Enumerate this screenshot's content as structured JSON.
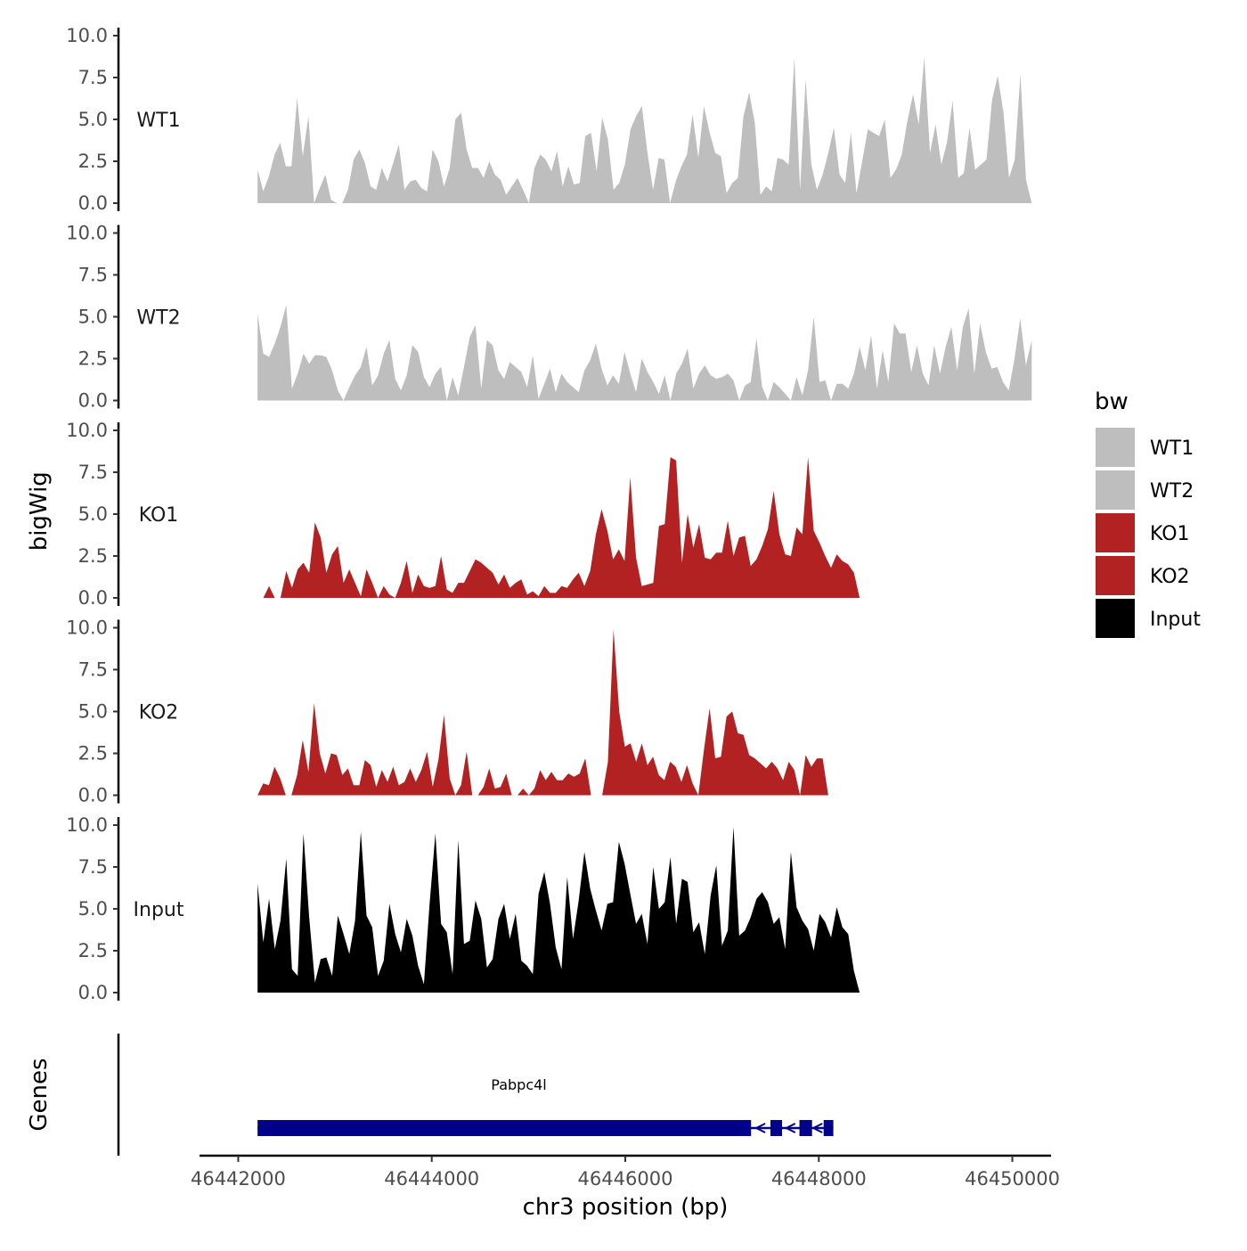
{
  "chart_data": {
    "type": "area",
    "ylabel": "bigWig",
    "xlabel": "chr3 position (bp)",
    "genes_panel_label": "Genes",
    "xlim": [
      46442000,
      46450000
    ],
    "x_ticks": [
      46442000,
      46444000,
      46446000,
      46448000,
      46450000
    ],
    "x_tick_labels": [
      "46442000",
      "46444000",
      "46446000",
      "46448000",
      "46450000"
    ],
    "ylim": [
      0,
      10
    ],
    "y_ticks": [
      0,
      2.5,
      5,
      7.5,
      10
    ],
    "y_tick_labels": [
      "0.0",
      "2.5",
      "5.0",
      "7.5",
      "10.0"
    ],
    "legend": {
      "title": "bw",
      "entries": [
        {
          "label": "WT1",
          "color": "#bebebe"
        },
        {
          "label": "WT2",
          "color": "#bebebe"
        },
        {
          "label": "KO1",
          "color": "#b22222"
        },
        {
          "label": "KO2",
          "color": "#b22222"
        },
        {
          "label": "Input",
          "color": "#000000"
        }
      ]
    },
    "series": [
      {
        "name": "WT1",
        "color": "#bebebe",
        "x_start": 46442200,
        "x_end": 46450200,
        "values": [
          2.0,
          0.7,
          1.6,
          2.9,
          3.6,
          2.2,
          2.2,
          6.3,
          2.8,
          5.2,
          0.0,
          0.9,
          1.7,
          0.2,
          0.0,
          0.0,
          0.8,
          2.6,
          3.2,
          2.4,
          1.0,
          0.8,
          2.1,
          1.3,
          2.4,
          3.5,
          0.8,
          1.3,
          1.4,
          0.9,
          0.7,
          3.2,
          2.5,
          1.0,
          2.1,
          5.0,
          5.4,
          3.2,
          2.1,
          2.1,
          1.5,
          2.5,
          1.7,
          1.4,
          0.5,
          1.0,
          1.5,
          0.8,
          0.0,
          2.1,
          2.9,
          2.6,
          1.9,
          3.1,
          1.0,
          2.2,
          1.1,
          1.2,
          4.0,
          4.2,
          1.9,
          5.1,
          3.8,
          0.8,
          1.2,
          2.3,
          4.4,
          5.2,
          5.8,
          3.0,
          0.8,
          2.7,
          2.6,
          0.0,
          1.3,
          2.2,
          2.9,
          5.3,
          2.7,
          5.8,
          4.2,
          3.0,
          2.8,
          0.6,
          1.2,
          1.5,
          5.2,
          6.6,
          4.8,
          0.5,
          1.0,
          0.7,
          2.7,
          2.6,
          2.3,
          8.7,
          0.8,
          7.4,
          2.3,
          0.8,
          1.7,
          3.0,
          4.5,
          1.7,
          1.2,
          4.2,
          0.6,
          2.5,
          4.4,
          4.2,
          4.0,
          5.0,
          1.5,
          2.0,
          2.9,
          4.9,
          6.5,
          4.7,
          8.7,
          3.0,
          4.7,
          2.3,
          3.6,
          6.1,
          1.5,
          1.8,
          4.5,
          2.0,
          2.3,
          2.6,
          6.2,
          7.6,
          5.4,
          1.5,
          2.6,
          7.7,
          1.4,
          0.0
        ]
      },
      {
        "name": "WT2",
        "color": "#bebebe",
        "x_start": 46442200,
        "x_end": 46450200,
        "values": [
          5.2,
          2.8,
          2.6,
          3.4,
          4.4,
          5.7,
          0.7,
          1.6,
          2.8,
          2.2,
          2.7,
          2.7,
          2.6,
          1.8,
          0.6,
          0.0,
          0.8,
          1.5,
          2.0,
          3.2,
          0.9,
          1.5,
          2.8,
          3.6,
          1.3,
          0.6,
          1.5,
          3.3,
          2.9,
          1.4,
          0.8,
          1.6,
          2.0,
          0.0,
          1.4,
          0.3,
          2.0,
          3.8,
          4.5,
          0.7,
          3.6,
          3.3,
          1.8,
          1.3,
          2.3,
          2.0,
          1.7,
          0.8,
          2.7,
          0.1,
          1.0,
          1.9,
          0.5,
          1.6,
          1.1,
          0.8,
          0.5,
          1.8,
          2.4,
          3.4,
          1.9,
          0.9,
          1.5,
          1.0,
          2.9,
          1.6,
          0.5,
          2.5,
          1.7,
          1.1,
          0.4,
          1.5,
          0.0,
          1.6,
          2.2,
          3.1,
          0.7,
          1.6,
          2.1,
          1.5,
          1.3,
          1.4,
          1.6,
          1.2,
          0.0,
          0.9,
          1.1,
          3.7,
          0.8,
          0.0,
          1.1,
          0.8,
          0.4,
          0.0,
          1.4,
          0.3,
          1.8,
          5.0,
          1.1,
          1.2,
          0.0,
          1.0,
          1.0,
          0.7,
          1.6,
          3.2,
          1.8,
          3.9,
          0.7,
          3.0,
          1.1,
          4.6,
          4.0,
          4.0,
          1.7,
          3.3,
          1.6,
          0.9,
          3.3,
          1.6,
          3.2,
          4.4,
          1.8,
          4.4,
          5.5,
          1.6,
          4.6,
          2.9,
          1.9,
          2.0,
          1.1,
          0.6,
          2.5,
          4.9,
          2.1,
          3.6
        ]
      },
      {
        "name": "KO1",
        "color": "#b22222",
        "x_start": 46442200,
        "x_end": 46450200,
        "values": [
          0.0,
          0.0,
          0.7,
          0.0,
          0.0,
          1.6,
          0.6,
          1.7,
          2.1,
          1.5,
          4.5,
          3.6,
          1.5,
          2.6,
          3.1,
          0.9,
          1.7,
          0.9,
          0.1,
          1.7,
          0.9,
          0.0,
          0.7,
          0.2,
          0.0,
          0.9,
          2.2,
          0.3,
          1.4,
          0.7,
          0.6,
          0.7,
          2.5,
          0.5,
          0.3,
          0.9,
          0.9,
          1.6,
          2.3,
          2.1,
          1.8,
          1.5,
          0.8,
          1.4,
          0.6,
          0.9,
          1.1,
          0.2,
          0.4,
          0.1,
          0.7,
          0.3,
          0.3,
          0.7,
          0.6,
          1.1,
          1.5,
          0.7,
          1.6,
          3.8,
          5.3,
          4.0,
          2.3,
          2.9,
          2.2,
          7.2,
          2.4,
          0.7,
          0.8,
          0.9,
          4.3,
          4.4,
          8.4,
          8.2,
          2.1,
          5.0,
          3.0,
          4.4,
          2.4,
          2.3,
          2.7,
          2.7,
          4.6,
          2.5,
          3.6,
          3.7,
          1.9,
          2.3,
          3.1,
          4.1,
          6.4,
          3.8,
          2.6,
          2.5,
          4.2,
          3.8,
          8.4,
          4.0,
          3.3,
          2.5,
          1.8,
          2.6,
          2.2,
          2.0,
          1.5,
          0.0,
          0.0,
          0.0,
          0.0,
          0.0,
          0.0,
          0.0,
          0.0,
          0.0,
          0.0,
          0.0,
          0.0,
          0.0,
          0.0,
          0.0,
          0.0,
          0.0,
          0.0,
          0.0,
          0.0,
          0.0,
          0.0,
          0.0,
          0.0,
          0.0,
          0.0,
          0.0,
          0.0,
          0.0,
          0.0,
          0.0
        ]
      },
      {
        "name": "KO2",
        "color": "#b22222",
        "x_start": 46442200,
        "x_end": 46450200,
        "values": [
          0.0,
          0.7,
          0.6,
          1.7,
          1.0,
          0.0,
          0.0,
          1.2,
          3.3,
          1.4,
          5.5,
          2.5,
          1.3,
          2.5,
          2.4,
          1.2,
          1.6,
          0.6,
          0.6,
          2.1,
          1.8,
          0.5,
          1.5,
          0.8,
          1.7,
          0.6,
          0.8,
          1.6,
          0.8,
          1.5,
          2.6,
          0.5,
          2.1,
          4.8,
          1.0,
          0.0,
          0.6,
          2.6,
          0.0,
          0.0,
          0.5,
          1.6,
          0.4,
          0.5,
          1.3,
          0.0,
          0.0,
          0.4,
          0.0,
          0.4,
          1.5,
          0.9,
          1.4,
          0.9,
          0.9,
          1.3,
          1.1,
          1.3,
          2.2,
          0.0,
          0.0,
          0.0,
          2.0,
          9.9,
          5.0,
          2.9,
          3.1,
          2.0,
          3.1,
          1.8,
          2.3,
          1.2,
          0.9,
          2.0,
          1.7,
          0.8,
          1.8,
          0.7,
          0.0,
          2.7,
          5.2,
          2.2,
          2.3,
          4.7,
          5.0,
          3.7,
          3.6,
          2.4,
          2.2,
          1.9,
          1.6,
          2.0,
          1.6,
          0.9,
          2.0,
          1.5,
          0.0,
          2.4,
          1.7,
          2.2,
          2.2,
          0.0,
          0.0,
          0.0,
          0.0,
          0.0,
          0.0,
          0.0,
          0.0,
          0.0,
          0.0,
          0.0,
          0.0,
          0.0,
          0.0,
          0.0,
          0.0,
          0.0,
          0.0,
          0.0,
          0.0,
          0.0,
          0.0,
          0.0,
          0.0,
          0.0,
          0.0,
          0.0,
          0.0,
          0.0,
          0.0,
          0.0,
          0.0,
          0.0,
          0.0,
          0.0,
          0.0,
          0.0
        ]
      },
      {
        "name": "Input",
        "color": "#000000",
        "x_start": 46442200,
        "x_end": 46450200,
        "values": [
          6.5,
          3.0,
          5.6,
          2.6,
          4.3,
          8.0,
          1.4,
          1.0,
          9.5,
          4.5,
          0.6,
          2.0,
          2.1,
          1.0,
          4.6,
          3.5,
          2.3,
          4.3,
          9.6,
          4.6,
          3.9,
          1.0,
          1.9,
          5.3,
          3.5,
          2.4,
          4.4,
          3.4,
          1.6,
          0.5,
          5.3,
          9.5,
          4.1,
          3.6,
          1.1,
          9.1,
          2.9,
          3.1,
          5.5,
          4.4,
          1.5,
          2.0,
          4.4,
          5.3,
          3.2,
          4.7,
          1.9,
          1.6,
          1.1,
          5.9,
          7.2,
          5.3,
          2.7,
          1.4,
          6.9,
          3.2,
          5.5,
          8.4,
          6.2,
          4.9,
          3.7,
          5.3,
          5.4,
          9.0,
          7.7,
          5.9,
          4.1,
          4.7,
          2.9,
          7.5,
          5.0,
          5.4,
          8.1,
          4.1,
          6.8,
          6.6,
          3.6,
          4.2,
          2.3,
          5.8,
          7.6,
          2.8,
          3.7,
          9.9,
          3.4,
          3.7,
          4.5,
          5.6,
          6.0,
          5.4,
          4.1,
          4.5,
          2.6,
          8.4,
          5.1,
          4.3,
          3.8,
          2.5,
          4.7,
          4.2,
          3.3,
          5.1,
          3.9,
          3.5,
          1.3,
          0.0,
          0.0,
          0.0,
          0.0,
          0.0,
          0.0,
          0.0,
          0.0,
          0.0,
          0.0,
          0.0,
          0.0,
          0.0,
          0.0,
          0.0,
          0.0,
          0.0,
          0.0,
          0.0,
          0.0,
          0.0,
          0.0,
          0.0,
          0.0,
          0.0,
          0.0,
          0.0,
          0.0,
          0.0,
          0.0,
          0.0
        ]
      }
    ],
    "genes": [
      {
        "name": "Pabpc4l",
        "color": "#00008b",
        "strand": "-",
        "start": 46442200,
        "end": 46448150,
        "exons": [
          [
            46442200,
            46447300
          ],
          [
            46447500,
            46447620
          ],
          [
            46447800,
            46447930
          ],
          [
            46448050,
            46448150
          ]
        ]
      }
    ]
  }
}
